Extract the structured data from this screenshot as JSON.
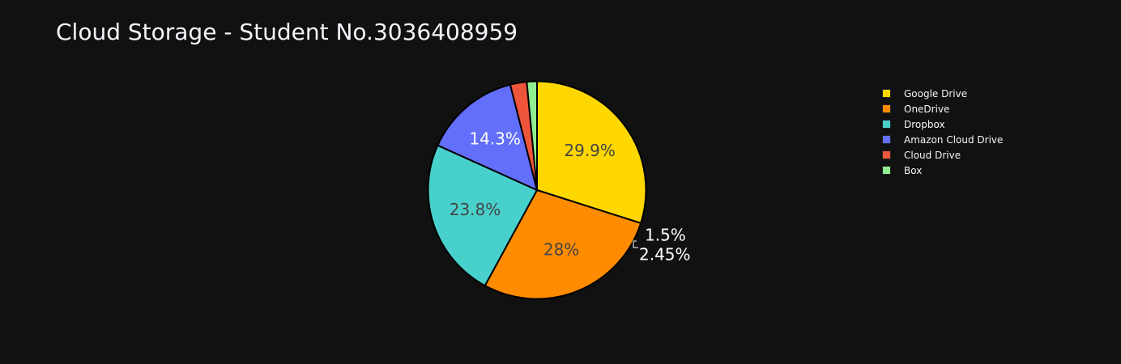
{
  "chart_data": {
    "type": "pie",
    "title": "Cloud Storage - Student No.3036408959",
    "categories": [
      "Google Drive",
      "OneDrive",
      "Dropbox",
      "Amazon Cloud Drive",
      "Cloud Drive",
      "Box"
    ],
    "values": [
      29.9,
      28,
      23.8,
      14.3,
      2.45,
      1.5
    ],
    "labels": [
      "29.9%",
      "28%",
      "23.8%",
      "14.3%",
      "2.45%",
      "1.5%"
    ],
    "colors": [
      "#FFD700",
      "#FF8C00",
      "#48D1CC",
      "#636EFA",
      "#EF553B",
      "#90EE90"
    ],
    "text_colors": [
      "#444444",
      "#444444",
      "#444444",
      "#FFFFFF",
      "#FFFFFF",
      "#FFFFFF"
    ],
    "direction": "clockwise",
    "legend_position": "top-right",
    "background": "#111111"
  }
}
